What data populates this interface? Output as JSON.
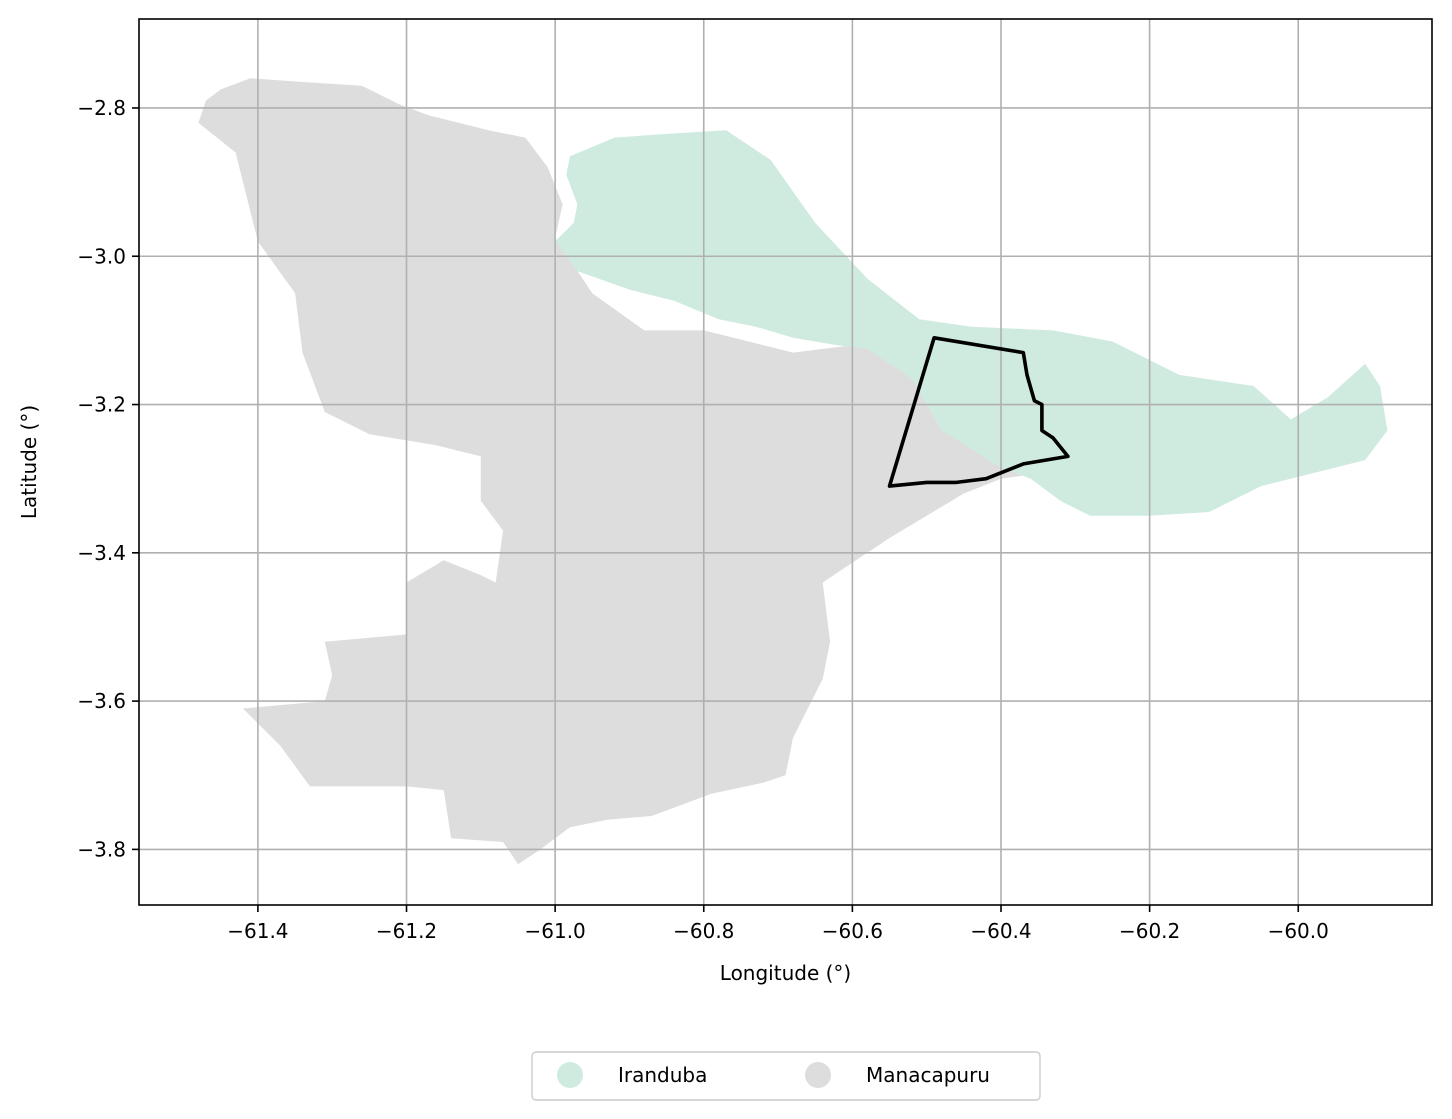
{
  "chart_data": {
    "type": "map",
    "xlabel": "Longitude (°)",
    "ylabel": "Latitude (°)",
    "xlim": [
      -61.56,
      -59.82
    ],
    "ylim": [
      -3.875,
      -2.68
    ],
    "xticks": [
      -61.4,
      -61.2,
      -61.0,
      -60.8,
      -60.6,
      -60.4,
      -60.2,
      -60.0
    ],
    "yticks": [
      -2.8,
      -3.0,
      -3.2,
      -3.4,
      -3.6,
      -3.8
    ],
    "xtick_labels": [
      "−61.4",
      "−61.2",
      "−61.0",
      "−60.8",
      "−60.6",
      "−60.4",
      "−60.2",
      "−60.0"
    ],
    "ytick_labels": [
      "−2.8",
      "−3.0",
      "−3.2",
      "−3.4",
      "−3.6",
      "−3.8"
    ],
    "grid": true,
    "legend_position": "bottom-center",
    "regions": [
      {
        "name": "Iranduba",
        "color": "#cfebdf",
        "outline": [
          [
            -60.98,
            -2.865
          ],
          [
            -60.92,
            -2.84
          ],
          [
            -60.85,
            -2.835
          ],
          [
            -60.77,
            -2.83
          ],
          [
            -60.71,
            -2.87
          ],
          [
            -60.65,
            -2.955
          ],
          [
            -60.58,
            -3.03
          ],
          [
            -60.51,
            -3.085
          ],
          [
            -60.44,
            -3.095
          ],
          [
            -60.33,
            -3.1
          ],
          [
            -60.25,
            -3.115
          ],
          [
            -60.16,
            -3.16
          ],
          [
            -60.06,
            -3.175
          ],
          [
            -60.01,
            -3.22
          ],
          [
            -59.96,
            -3.19
          ],
          [
            -59.91,
            -3.145
          ],
          [
            -59.89,
            -3.175
          ],
          [
            -59.88,
            -3.235
          ],
          [
            -59.91,
            -3.275
          ],
          [
            -59.99,
            -3.295
          ],
          [
            -60.05,
            -3.31
          ],
          [
            -60.12,
            -3.345
          ],
          [
            -60.2,
            -3.35
          ],
          [
            -60.24,
            -3.35
          ],
          [
            -60.28,
            -3.35
          ],
          [
            -60.32,
            -3.33
          ],
          [
            -60.36,
            -3.3
          ],
          [
            -60.4,
            -3.285
          ],
          [
            -60.48,
            -3.235
          ],
          [
            -60.52,
            -3.165
          ],
          [
            -60.58,
            -3.125
          ],
          [
            -60.62,
            -3.12
          ],
          [
            -60.68,
            -3.11
          ],
          [
            -60.73,
            -3.095
          ],
          [
            -60.78,
            -3.085
          ],
          [
            -60.84,
            -3.06
          ],
          [
            -60.9,
            -3.045
          ],
          [
            -60.97,
            -3.02
          ],
          [
            -61.0,
            -2.98
          ],
          [
            -60.975,
            -2.955
          ],
          [
            -60.97,
            -2.93
          ],
          [
            -60.985,
            -2.89
          ]
        ]
      },
      {
        "name": "Manacapuru",
        "color": "#dddddd",
        "outline": [
          [
            -61.47,
            -2.79
          ],
          [
            -61.45,
            -2.775
          ],
          [
            -61.41,
            -2.76
          ],
          [
            -61.34,
            -2.765
          ],
          [
            -61.26,
            -2.77
          ],
          [
            -61.21,
            -2.795
          ],
          [
            -61.17,
            -2.81
          ],
          [
            -61.09,
            -2.83
          ],
          [
            -61.04,
            -2.84
          ],
          [
            -61.01,
            -2.88
          ],
          [
            -60.99,
            -2.93
          ],
          [
            -61.0,
            -2.975
          ],
          [
            -60.95,
            -3.05
          ],
          [
            -60.88,
            -3.1
          ],
          [
            -60.8,
            -3.1
          ],
          [
            -60.68,
            -3.13
          ],
          [
            -60.6,
            -3.12
          ],
          [
            -60.52,
            -3.13
          ],
          [
            -60.4,
            -3.14
          ],
          [
            -60.33,
            -3.165
          ],
          [
            -60.29,
            -3.26
          ],
          [
            -60.33,
            -3.29
          ],
          [
            -60.4,
            -3.3
          ],
          [
            -60.45,
            -3.32
          ],
          [
            -60.55,
            -3.38
          ],
          [
            -60.64,
            -3.44
          ],
          [
            -60.63,
            -3.52
          ],
          [
            -60.64,
            -3.57
          ],
          [
            -60.68,
            -3.65
          ],
          [
            -60.69,
            -3.7
          ],
          [
            -60.72,
            -3.71
          ],
          [
            -60.79,
            -3.725
          ],
          [
            -60.87,
            -3.755
          ],
          [
            -60.93,
            -3.76
          ],
          [
            -60.98,
            -3.77
          ],
          [
            -61.02,
            -3.8
          ],
          [
            -61.05,
            -3.82
          ],
          [
            -61.07,
            -3.79
          ],
          [
            -61.14,
            -3.785
          ],
          [
            -61.15,
            -3.72
          ],
          [
            -61.2,
            -3.715
          ],
          [
            -61.33,
            -3.715
          ],
          [
            -61.37,
            -3.66
          ],
          [
            -61.42,
            -3.61
          ],
          [
            -61.31,
            -3.6
          ],
          [
            -61.3,
            -3.565
          ],
          [
            -61.31,
            -3.52
          ],
          [
            -61.2,
            -3.51
          ],
          [
            -61.2,
            -3.44
          ],
          [
            -61.15,
            -3.41
          ],
          [
            -61.1,
            -3.43
          ],
          [
            -61.08,
            -3.44
          ],
          [
            -61.07,
            -3.37
          ],
          [
            -61.1,
            -3.33
          ],
          [
            -61.1,
            -3.27
          ],
          [
            -61.16,
            -3.255
          ],
          [
            -61.25,
            -3.24
          ],
          [
            -61.31,
            -3.21
          ],
          [
            -61.34,
            -3.13
          ],
          [
            -61.35,
            -3.05
          ],
          [
            -61.4,
            -2.98
          ],
          [
            -61.42,
            -2.9
          ],
          [
            -61.43,
            -2.86
          ],
          [
            -61.48,
            -2.82
          ]
        ]
      }
    ],
    "highlight_outline": {
      "color": "#000000",
      "points": [
        [
          -60.49,
          -3.11
        ],
        [
          -60.37,
          -3.13
        ],
        [
          -60.365,
          -3.16
        ],
        [
          -60.355,
          -3.195
        ],
        [
          -60.345,
          -3.2
        ],
        [
          -60.345,
          -3.235
        ],
        [
          -60.33,
          -3.245
        ],
        [
          -60.31,
          -3.27
        ],
        [
          -60.37,
          -3.28
        ],
        [
          -60.42,
          -3.3
        ],
        [
          -60.46,
          -3.305
        ],
        [
          -60.5,
          -3.305
        ],
        [
          -60.55,
          -3.31
        ]
      ]
    },
    "legend": [
      {
        "label": "Iranduba",
        "color": "#cfebdf"
      },
      {
        "label": "Manacapuru",
        "color": "#dddddd"
      }
    ]
  }
}
